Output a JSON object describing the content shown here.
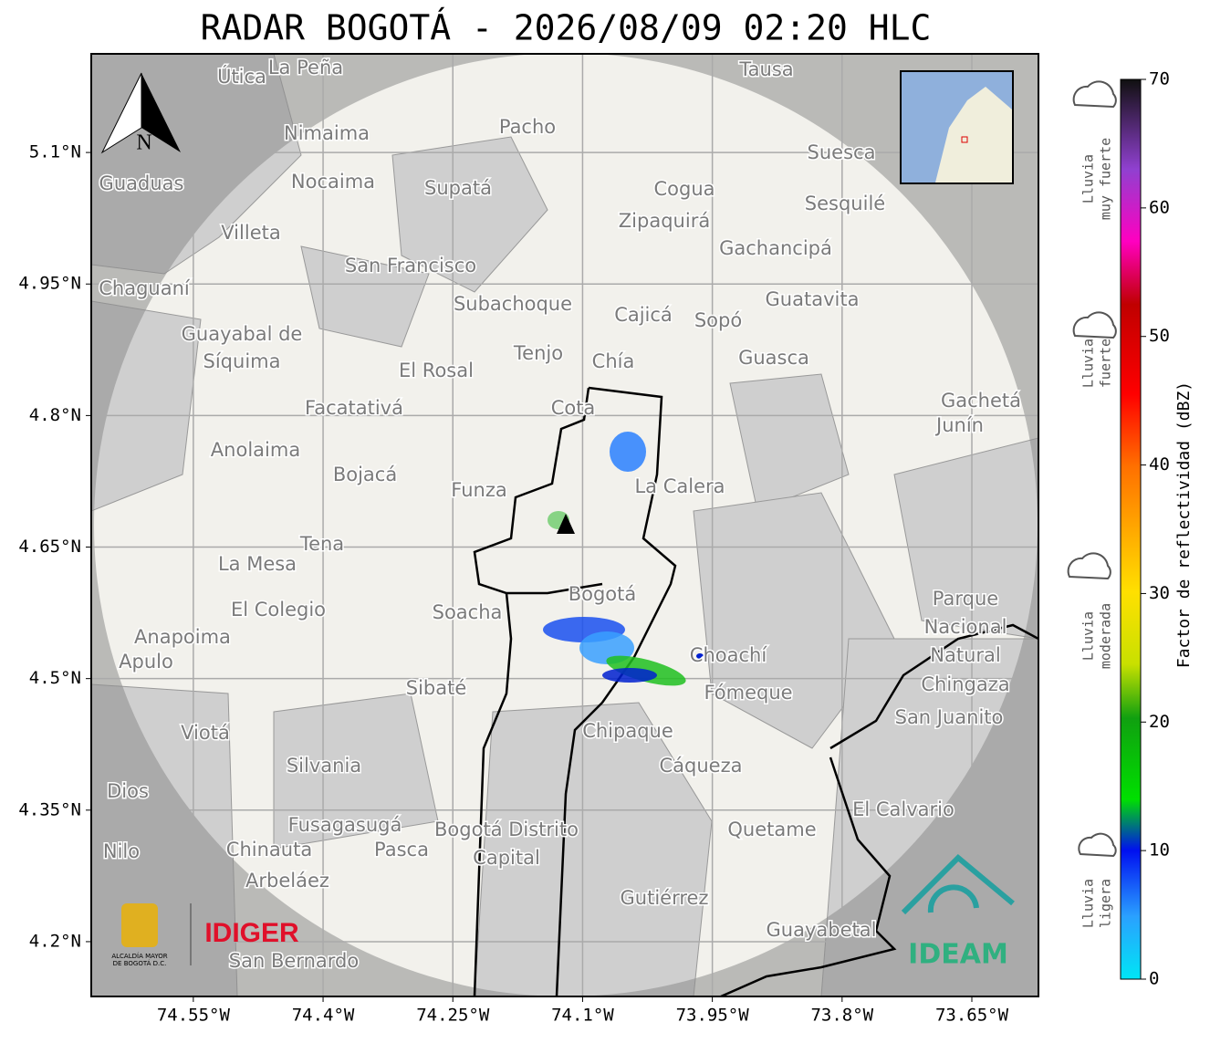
{
  "header": {
    "title": "RADAR BOGOTÁ - 2026/08/09 02:20 HLC"
  },
  "map": {
    "xlim": [
      -74.668,
      -73.573
    ],
    "ylim": [
      4.1375,
      5.2125
    ],
    "xticks": [
      {
        "value": -74.55,
        "label": "74.55°W"
      },
      {
        "value": -74.4,
        "label": "74.4°W"
      },
      {
        "value": -74.25,
        "label": "74.25°W"
      },
      {
        "value": -74.1,
        "label": "74.1°W"
      },
      {
        "value": -73.95,
        "label": "73.95°W"
      },
      {
        "value": -73.8,
        "label": "73.8°W"
      },
      {
        "value": -73.65,
        "label": "73.65°W"
      }
    ],
    "yticks": [
      {
        "value": 5.1,
        "label": "5.1°N"
      },
      {
        "value": 4.95,
        "label": "4.95°N"
      },
      {
        "value": 4.8,
        "label": "4.8°N"
      },
      {
        "value": 4.65,
        "label": "4.65°N"
      },
      {
        "value": 4.5,
        "label": "4.5°N"
      },
      {
        "value": 4.35,
        "label": "4.35°N"
      },
      {
        "value": 4.2,
        "label": "4.2°N"
      }
    ],
    "north": "N",
    "places": [
      "Útica",
      "La Peña",
      "Tausa",
      "Pacho",
      "Nimaima",
      "Guaduas",
      "Nocaima",
      "Supatá",
      "Cogua",
      "Suesca",
      "Sesquilé",
      "Zipaquirá",
      "Villeta",
      "Gachancipá",
      "San Francisco",
      "Chaguaní",
      "Guatavita",
      "Subachoque",
      "Cajicá",
      "Sopó",
      "Guayabal de",
      "Síquima",
      "Tenjo",
      "Chía",
      "Guasca",
      "El Rosal",
      "Facatativá",
      "Cota",
      "Gachetá",
      "Junín",
      "Anolaima",
      "Bojacá",
      "Funza",
      "La Calera",
      "Tena",
      "La Mesa",
      "Bogotá",
      "Soacha",
      "El Colegio",
      "Parque",
      "Nacional",
      "Natural",
      "Chingaza",
      "Anapoima",
      "Apulo",
      "Choachí",
      "Sibaté",
      "Fómeque",
      "San Juanito",
      "Viotá",
      "Chipaque",
      "Silvania",
      "Cáqueza",
      "Dios",
      "El Calvario",
      "Fusagasugá",
      "Bogotá Distrito",
      "Capital",
      "Quetame",
      "Pasca",
      "Chinauta",
      "Nilo",
      "Arbeláez",
      "Gutiérrez",
      "Guayabetal",
      "San Bernardo"
    ]
  },
  "logos": {
    "alcaldia": [
      "ALCALDÍA MAYOR",
      "DE BOGOTÁ D.C."
    ],
    "idiger": "IDIGER",
    "ideam": "IDEAM"
  },
  "colorbar": {
    "label": "Factor de reflectividad (dBZ)",
    "lim": [
      0,
      70
    ],
    "ticks": [
      0,
      10,
      20,
      30,
      40,
      50,
      60,
      70
    ],
    "categories": [
      [
        "Lluvia",
        "muy fuerte"
      ],
      [
        "Lluvia",
        "fuerte"
      ],
      [
        "Lluvia",
        "moderada"
      ],
      [
        "Lluvia",
        "ligera"
      ]
    ]
  }
}
